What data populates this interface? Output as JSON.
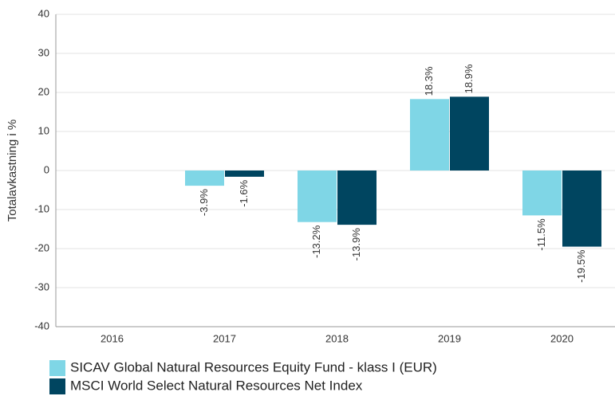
{
  "chart_data": {
    "type": "bar",
    "y_label": "Totalavkastning i %",
    "categories": [
      "2016",
      "2017",
      "2018",
      "2019",
      "2020"
    ],
    "series": [
      {
        "name": "SICAV Global Natural Resources Equity Fund - klass I (EUR)",
        "color": "#7fd6e6",
        "values": [
          null,
          -3.9,
          -13.2,
          18.3,
          -11.5
        ],
        "value_labels": [
          null,
          "-3.9%",
          "-13.2%",
          "18.3%",
          "-11.5%"
        ]
      },
      {
        "name": "MSCI World Select Natural Resources Net Index",
        "color": "#004560",
        "values": [
          null,
          -1.6,
          -13.9,
          18.9,
          -19.5
        ],
        "value_labels": [
          null,
          "-1.6%",
          "-13.9%",
          "18.9%",
          "-19.5%"
        ]
      }
    ],
    "ylim": [
      -40,
      40
    ],
    "yticks": [
      -40,
      -30,
      -20,
      -10,
      0,
      10,
      20,
      30,
      40
    ],
    "grid": true
  }
}
